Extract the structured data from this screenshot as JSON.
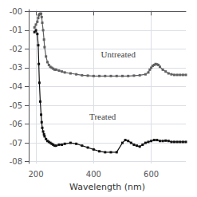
{
  "chart_data": {
    "type": "line",
    "xlabel": "Wavelength (nm)",
    "xlim": [
      175,
      720
    ],
    "xticks": [
      200,
      400,
      600
    ],
    "ylim": [
      -8.1,
      0.1
    ],
    "yticks": [
      {
        "value": 0,
        "label": "-00"
      },
      {
        "value": -1,
        "label": "-01"
      },
      {
        "value": -2,
        "label": "-02"
      },
      {
        "value": -3,
        "label": "-03"
      },
      {
        "value": -4,
        "label": "-04"
      },
      {
        "value": -5,
        "label": "-05"
      },
      {
        "value": -6,
        "label": "-06"
      },
      {
        "value": -7,
        "label": "-07"
      },
      {
        "value": -8,
        "label": "-08"
      }
    ],
    "grid": true,
    "marker": "square",
    "series": [
      {
        "color": "#606060",
        "x": [
          195,
          200,
          205,
          208,
          210,
          212,
          215,
          218,
          220,
          222,
          225,
          228,
          230,
          235,
          240,
          245,
          250,
          255,
          260,
          265,
          270,
          280,
          290,
          300,
          320,
          340,
          360,
          380,
          400,
          420,
          440,
          460,
          480,
          500,
          520,
          540,
          560,
          580,
          590,
          595,
          600,
          605,
          610,
          615,
          620,
          625,
          630,
          640,
          650,
          660,
          670,
          680,
          690,
          700,
          710,
          720
        ],
        "values": [
          -0.85,
          -0.7,
          -0.55,
          -0.35,
          -0.2,
          -0.15,
          -0.12,
          -0.12,
          -0.3,
          -0.6,
          -1.0,
          -1.5,
          -1.9,
          -2.4,
          -2.7,
          -2.85,
          -2.95,
          -3.0,
          -3.05,
          -3.1,
          -3.1,
          -3.15,
          -3.2,
          -3.25,
          -3.3,
          -3.35,
          -3.4,
          -3.42,
          -3.44,
          -3.44,
          -3.44,
          -3.44,
          -3.44,
          -3.44,
          -3.44,
          -3.42,
          -3.4,
          -3.35,
          -3.25,
          -3.1,
          -3.0,
          -2.9,
          -2.85,
          -2.8,
          -2.82,
          -2.85,
          -2.95,
          -3.1,
          -3.2,
          -3.3,
          -3.35,
          -3.38,
          -3.38,
          -3.38,
          -3.38,
          -3.38
        ]
      },
      {
        "color": "#101010",
        "x": [
          195,
          200,
          205,
          208,
          210,
          212,
          215,
          218,
          220,
          222,
          225,
          228,
          230,
          235,
          240,
          245,
          250,
          255,
          260,
          265,
          270,
          280,
          290,
          300,
          320,
          340,
          360,
          380,
          400,
          420,
          440,
          460,
          480,
          500,
          510,
          520,
          530,
          540,
          550,
          560,
          570,
          580,
          590,
          600,
          610,
          620,
          630,
          640,
          650,
          660,
          670,
          680,
          690,
          700,
          710,
          720
        ],
        "values": [
          -1.1,
          -1.0,
          -1.2,
          -1.8,
          -2.8,
          -3.8,
          -4.8,
          -5.5,
          -5.9,
          -6.2,
          -6.4,
          -6.55,
          -6.65,
          -6.8,
          -6.9,
          -6.95,
          -7.0,
          -7.05,
          -7.1,
          -7.15,
          -7.15,
          -7.1,
          -7.1,
          -7.05,
          -7.0,
          -7.05,
          -7.15,
          -7.25,
          -7.35,
          -7.45,
          -7.5,
          -7.5,
          -7.5,
          -7.0,
          -6.85,
          -6.9,
          -7.0,
          -7.1,
          -7.15,
          -7.2,
          -7.1,
          -7.0,
          -6.95,
          -6.9,
          -6.85,
          -6.85,
          -6.9,
          -6.9,
          -6.88,
          -6.9,
          -6.95,
          -6.95,
          -6.95,
          -6.95,
          -6.95,
          -6.95
        ]
      }
    ],
    "annotations": [
      {
        "text": "Untreated",
        "x": 420,
        "y": -2.3
      },
      {
        "text": "Treated",
        "x": 380,
        "y": -5.6
      }
    ]
  }
}
